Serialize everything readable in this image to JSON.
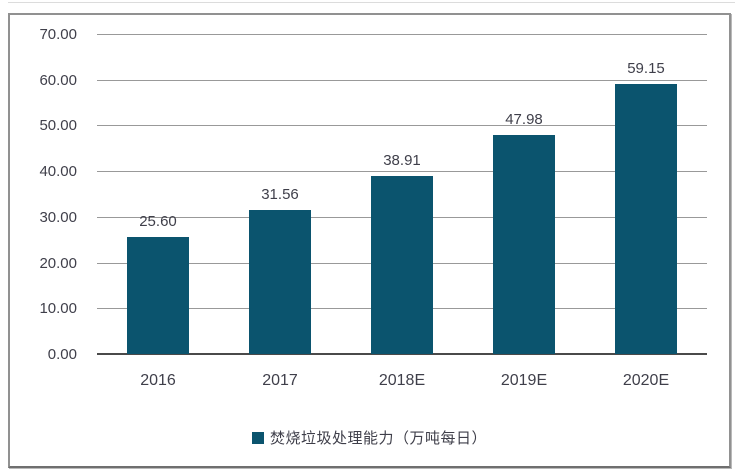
{
  "chart_data": {
    "type": "bar",
    "categories": [
      "2016",
      "2017",
      "2018E",
      "2019E",
      "2020E"
    ],
    "values": [
      25.6,
      31.56,
      38.91,
      47.98,
      59.15
    ],
    "value_labels": [
      "25.60",
      "31.56",
      "38.91",
      "47.98",
      "59.15"
    ],
    "title": "",
    "xlabel": "",
    "ylabel": "",
    "ylim": [
      0,
      70
    ],
    "ytick_step": 10,
    "ytick_labels": [
      "0.00",
      "10.00",
      "20.00",
      "30.00",
      "40.00",
      "50.00",
      "60.00",
      "70.00"
    ],
    "grid": true,
    "legend": {
      "position": "bottom",
      "entries": [
        {
          "label": "焚烧垃圾处理能力（万吨每日）",
          "color": "#0b546e"
        }
      ]
    }
  },
  "colors": {
    "bar": "#0b546e",
    "gridline": "#999999",
    "axis": "#4a4a4a",
    "text": "#3f3f4a",
    "frame_border": "#919191",
    "background": "#ffffff"
  }
}
